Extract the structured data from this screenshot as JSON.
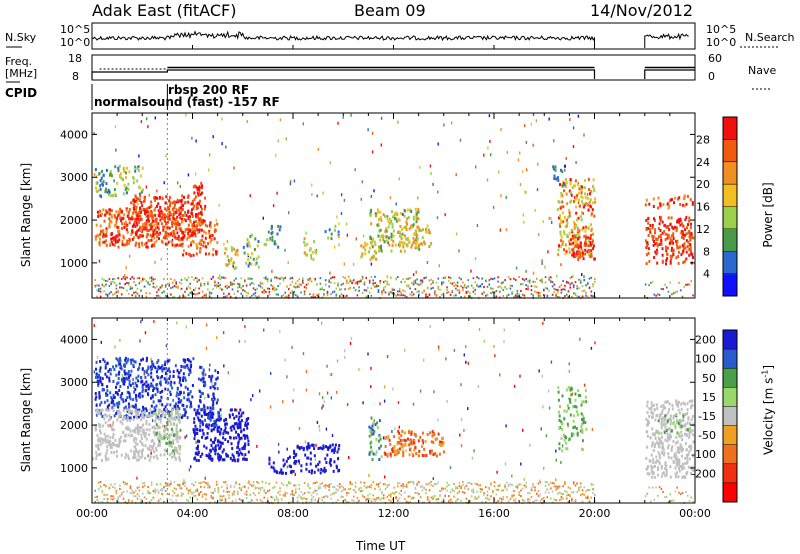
{
  "header": {
    "title": "Adak East (fitACF)",
    "beam": "Beam 09",
    "date": "14/Nov/2012"
  },
  "strips": {
    "nsky_label": "N.Sky",
    "nsearch_label": "N.Search",
    "noise_ticks": [
      "10^5",
      "10^0"
    ],
    "freq_label_1": "Freq.",
    "freq_label_2": "[MHz]",
    "freq_ticks": [
      "18",
      "8"
    ],
    "nave_label": "Nave",
    "nave_ticks": [
      "60",
      "0"
    ],
    "cpid_label": "CPID",
    "cpid_entries": [
      {
        "start": "00:00",
        "label": "normalsound (fast) -157 RF"
      },
      {
        "start": "03:00",
        "label": "rbsp 200 RF"
      }
    ]
  },
  "chart_data": [
    {
      "type": "heatmap",
      "quantity": "Power",
      "ylabel": "Slant Range [km]",
      "xlabel": "Time UT",
      "xlim": [
        "00:00",
        "24:00"
      ],
      "ylim": [
        180,
        4500
      ],
      "x_ticks": [
        "00:00",
        "04:00",
        "08:00",
        "12:00",
        "16:00",
        "20:00",
        "00:00"
      ],
      "y_ticks": [
        1000,
        2000,
        3000,
        4000
      ],
      "colorbar_label": "Power [dB]",
      "colorbar_ticks": [
        4,
        8,
        12,
        16,
        20,
        24,
        28
      ],
      "data_gap": [
        "20:00",
        "22:00"
      ]
    },
    {
      "type": "heatmap",
      "quantity": "Velocity",
      "ylabel": "Slant Range [km]",
      "xlabel": "Time UT",
      "xlim": [
        "00:00",
        "24:00"
      ],
      "ylim": [
        180,
        4500
      ],
      "x_ticks": [
        "00:00",
        "04:00",
        "08:00",
        "12:00",
        "16:00",
        "20:00",
        "00:00"
      ],
      "y_ticks": [
        1000,
        2000,
        3000,
        4000
      ],
      "colorbar_label_main": "Velocity",
      "colorbar_label_unit": "[m s",
      "colorbar_label_exp": "-1",
      "colorbar_label_close": "]",
      "colorbar_ticks": [
        200,
        100,
        50,
        15,
        -15,
        -50,
        -100,
        -200
      ],
      "data_gap": [
        "20:00",
        "22:00"
      ]
    }
  ],
  "colors": {
    "power_scale": [
      "#1010ff",
      "#2a6ad0",
      "#4a9a4a",
      "#9ad04a",
      "#f0c020",
      "#f09020",
      "#f05a10",
      "#f01010"
    ],
    "velocity_scale": [
      "#1a1ad0",
      "#2a5ad0",
      "#4aa04a",
      "#9ad86a",
      "#c0c0c0",
      "#f0a020",
      "#f07020",
      "#f03010",
      "#ff0000"
    ]
  }
}
